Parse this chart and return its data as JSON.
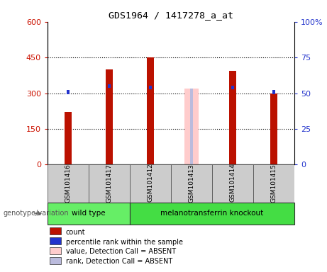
{
  "title": "GDS1964 / 1417278_a_at",
  "samples": [
    "GSM101416",
    "GSM101417",
    "GSM101412",
    "GSM101413",
    "GSM101414",
    "GSM101415"
  ],
  "count_values": [
    220,
    400,
    450,
    0,
    395,
    300
  ],
  "count_absent_values": [
    0,
    0,
    0,
    320,
    0,
    0
  ],
  "percentile_values": [
    52,
    56,
    55,
    0,
    55,
    52
  ],
  "percentile_absent_values": [
    0,
    0,
    0,
    53,
    0,
    0
  ],
  "absent_flags": [
    false,
    false,
    false,
    true,
    false,
    false
  ],
  "genotype_groups": [
    {
      "label": "wild type",
      "indices": [
        0,
        1
      ],
      "color": "#66ee66"
    },
    {
      "label": "melanotransferrin knockout",
      "indices": [
        2,
        3,
        4,
        5
      ],
      "color": "#44dd44"
    }
  ],
  "ylim_left": [
    0,
    600
  ],
  "ylim_right": [
    0,
    100
  ],
  "yticks_left": [
    0,
    150,
    300,
    450,
    600
  ],
  "ytick_labels_left": [
    "0",
    "150",
    "300",
    "450",
    "600"
  ],
  "yticks_right": [
    0,
    25,
    50,
    75,
    100
  ],
  "ytick_labels_right": [
    "0",
    "25",
    "50",
    "75",
    "100%"
  ],
  "bar_color_count": "#bb1100",
  "bar_color_count_absent": "#ffcccc",
  "bar_color_rank": "#2233cc",
  "bar_color_rank_absent": "#bbbbdd",
  "legend_items": [
    {
      "color": "#bb1100",
      "label": "count"
    },
    {
      "color": "#2233cc",
      "label": "percentile rank within the sample"
    },
    {
      "color": "#ffcccc",
      "label": "value, Detection Call = ABSENT"
    },
    {
      "color": "#bbbbdd",
      "label": "rank, Detection Call = ABSENT"
    }
  ],
  "genotype_label": "genotype/variation"
}
